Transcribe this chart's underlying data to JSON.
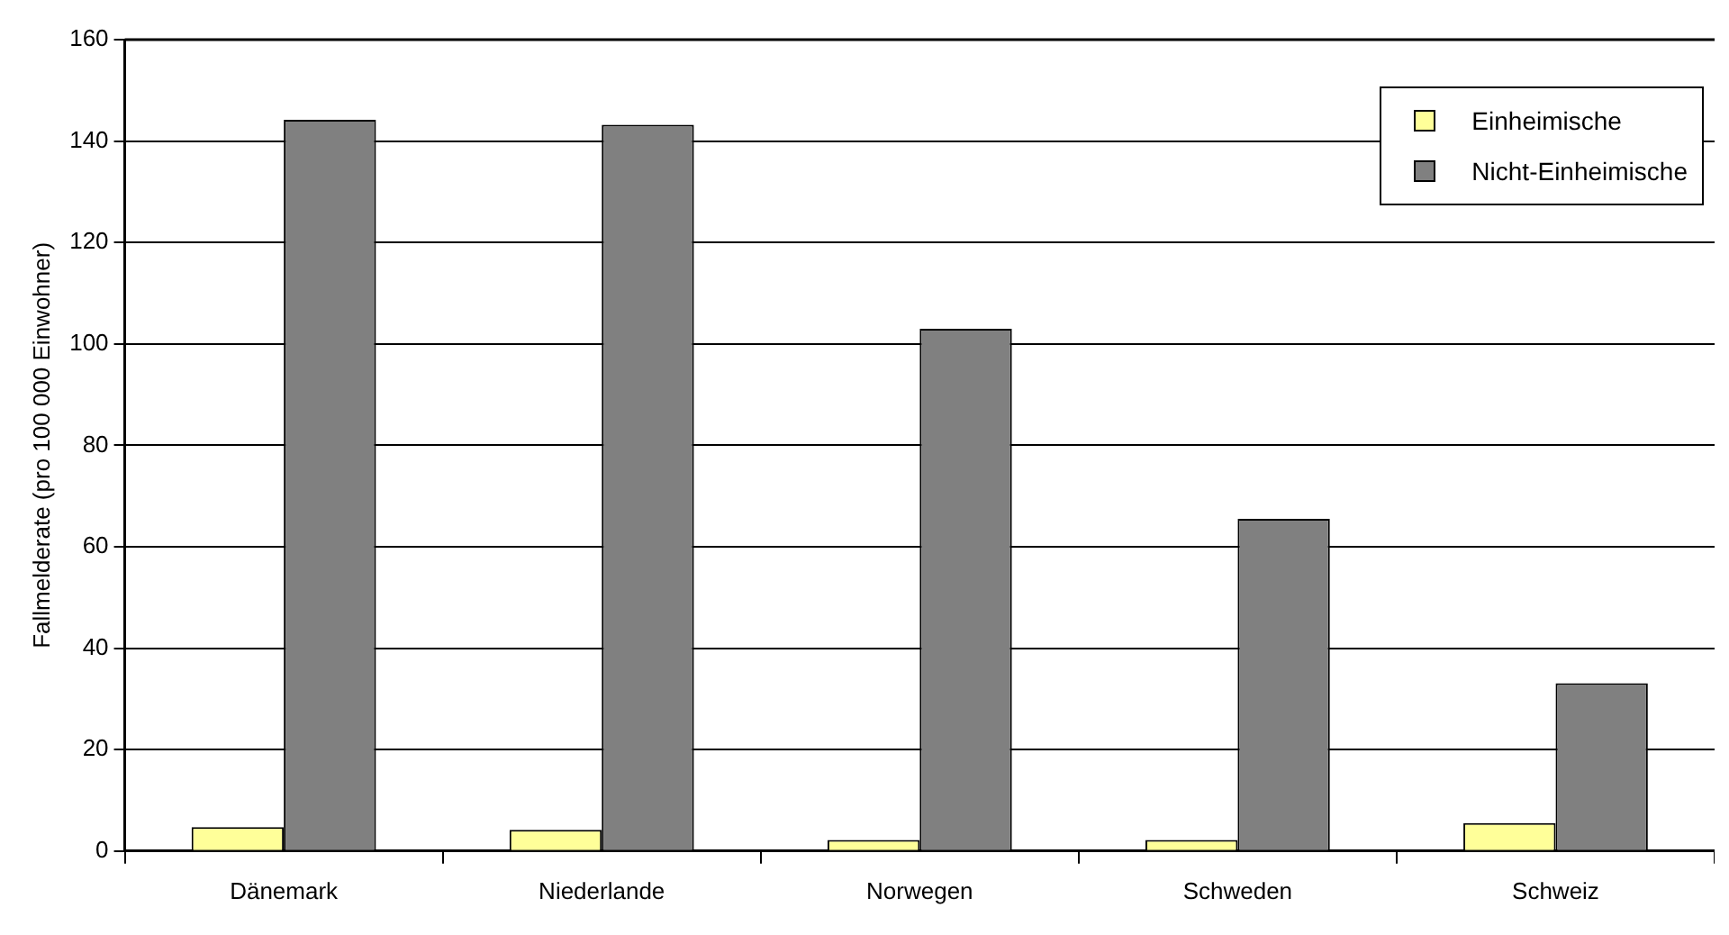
{
  "chart_data": {
    "type": "bar",
    "ylabel": "Fallmelderate (pro 100 000 Einwohner)",
    "categories": [
      "Dänemark",
      "Niederlande",
      "Norwegen",
      "Schweden",
      "Schweiz"
    ],
    "series": [
      {
        "name": "Einheimische",
        "color": "#ffff99",
        "values": [
          4.7,
          4.2,
          2.2,
          2.2,
          5.5
        ]
      },
      {
        "name": "Nicht-Einheimische",
        "color": "#808080",
        "values": [
          144.2,
          143.2,
          103.0,
          65.5,
          33.1
        ]
      }
    ],
    "ylim": [
      0,
      160
    ],
    "yticks": [
      0,
      20,
      40,
      60,
      80,
      100,
      120,
      140,
      160
    ],
    "grid": "y",
    "legend": "top right"
  }
}
